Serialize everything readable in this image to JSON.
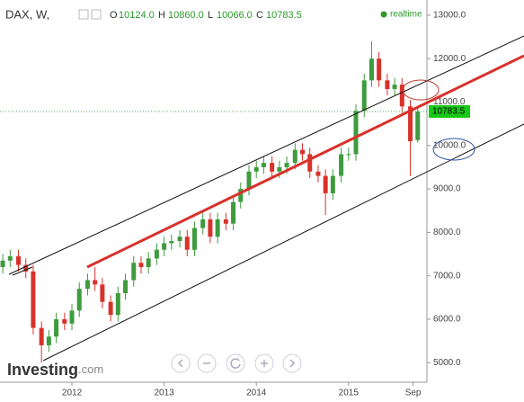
{
  "header": {
    "symbol": "DAX, W,",
    "quote": [
      {
        "name": "O",
        "value": 10124,
        "label": "10124.0"
      },
      {
        "name": "H",
        "value": 10860,
        "label": "10860.0"
      },
      {
        "name": "L",
        "value": 10066,
        "label": "10066.0"
      },
      {
        "name": "C",
        "value": 10783.5,
        "label": "10783.5"
      }
    ],
    "status": "realtime"
  },
  "logo": [
    "Investing",
    ".com"
  ],
  "chart_data": {
    "type": "candlestick",
    "x": [
      2011.25,
      2011.33,
      2011.42,
      2011.5,
      2011.58,
      2011.67,
      2011.75,
      2011.83,
      2011.92,
      2012.0,
      2012.08,
      2012.17,
      2012.25,
      2012.33,
      2012.42,
      2012.5,
      2012.58,
      2012.67,
      2012.75,
      2012.83,
      2012.92,
      2013.0,
      2013.08,
      2013.17,
      2013.25,
      2013.33,
      2013.42,
      2013.5,
      2013.58,
      2013.67,
      2013.75,
      2013.83,
      2013.92,
      2014.0,
      2014.08,
      2014.17,
      2014.25,
      2014.33,
      2014.42,
      2014.5,
      2014.58,
      2014.67,
      2014.75,
      2014.83,
      2014.92,
      2015.0,
      2015.08,
      2015.17,
      2015.25,
      2015.33,
      2015.42,
      2015.5,
      2015.58,
      2015.67,
      2015.75
    ],
    "open": [
      7200,
      7350,
      7450,
      7250,
      7100,
      5800,
      5400,
      5600,
      6000,
      5900,
      6200,
      6700,
      6900,
      6800,
      6400,
      6100,
      6600,
      6900,
      7300,
      7200,
      7400,
      7600,
      7750,
      7800,
      7900,
      7600,
      8100,
      8300,
      7900,
      8300,
      8200,
      8700,
      9000,
      9400,
      9500,
      9600,
      9400,
      9500,
      9600,
      9900,
      9800,
      9400,
      9300,
      8900,
      9300,
      9800,
      9800,
      10800,
      11500,
      12000,
      11500,
      11300,
      11400,
      10900,
      10124
    ],
    "high": [
      7500,
      7600,
      7600,
      7400,
      7250,
      5950,
      5750,
      6150,
      6150,
      6350,
      6850,
      7050,
      7200,
      6950,
      6550,
      6750,
      7050,
      7450,
      7450,
      7550,
      7750,
      7900,
      7950,
      8050,
      8050,
      8250,
      8450,
      8450,
      8450,
      8450,
      8850,
      9150,
      9550,
      9650,
      9750,
      9750,
      9650,
      9750,
      10050,
      10050,
      9950,
      9550,
      9450,
      9450,
      9950,
      9950,
      10950,
      11650,
      12400,
      12150,
      11650,
      11550,
      11550,
      11050,
      10860
    ],
    "low": [
      7050,
      7200,
      7100,
      6950,
      5650,
      5000,
      5250,
      5450,
      5750,
      5750,
      6050,
      6550,
      6650,
      6250,
      5950,
      5950,
      6450,
      6750,
      7050,
      7050,
      7250,
      7450,
      7600,
      7650,
      7450,
      7450,
      7950,
      7750,
      7750,
      8050,
      8050,
      8550,
      8850,
      9250,
      9350,
      9250,
      9250,
      9350,
      9450,
      9650,
      9250,
      9150,
      8400,
      8750,
      9150,
      9650,
      9650,
      10650,
      11350,
      11350,
      11150,
      11150,
      10750,
      9300,
      10066
    ],
    "close": [
      7350,
      7450,
      7250,
      7100,
      5800,
      5400,
      5600,
      6000,
      5900,
      6200,
      6700,
      6900,
      6800,
      6400,
      6100,
      6600,
      6900,
      7300,
      7200,
      7400,
      7600,
      7750,
      7800,
      7900,
      7600,
      8100,
      8300,
      7900,
      8300,
      8200,
      8700,
      9000,
      9400,
      9500,
      9600,
      9400,
      9500,
      9600,
      9900,
      9800,
      9400,
      9300,
      8900,
      9300,
      9800,
      9800,
      10800,
      11500,
      12000,
      11500,
      11300,
      11400,
      10900,
      10100,
      10783.5
    ],
    "up_color": "#3e9b3e",
    "down_color": "#d9312b",
    "price_label": {
      "value": 10783.5,
      "label": "10783.5"
    },
    "xlim": [
      2011.22,
      2015.85
    ],
    "xticks": [
      2012,
      2013,
      2014,
      2015,
      {
        "value": 2015.7,
        "label": "Sep"
      }
    ],
    "ylim": [
      4550,
      13350
    ],
    "yticks": [
      {
        "value": 5000,
        "label": "5000.0"
      },
      {
        "value": 6000,
        "label": "6000.0"
      },
      {
        "value": 7000,
        "label": "7000.0"
      },
      {
        "value": 8000,
        "label": "8000.0"
      },
      {
        "value": 9000,
        "label": "9000.0"
      },
      {
        "value": 10000,
        "label": "10000.0"
      },
      {
        "value": 11000,
        "label": "11000.0"
      },
      {
        "value": 12000,
        "label": "12000.0"
      },
      {
        "value": 13000,
        "label": "13000.0"
      }
    ],
    "grid": false
  }
}
